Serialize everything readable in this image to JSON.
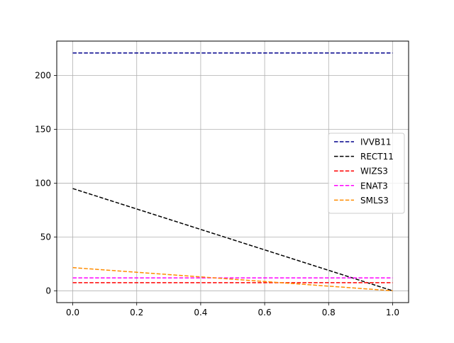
{
  "chart_data": {
    "type": "line",
    "title": "",
    "xlabel": "",
    "ylabel": "",
    "xlim": [
      -0.05,
      1.05
    ],
    "ylim": [
      -11,
      232
    ],
    "xticks": [
      0.0,
      0.2,
      0.4,
      0.6,
      0.8,
      1.0
    ],
    "xtick_labels": [
      "0.0",
      "0.2",
      "0.4",
      "0.6",
      "0.8",
      "1.0"
    ],
    "yticks": [
      0,
      50,
      100,
      150,
      200
    ],
    "ytick_labels": [
      "0",
      "50",
      "100",
      "150",
      "200"
    ],
    "grid": true,
    "legend_position": "center-right",
    "line_style": "dashed",
    "series": [
      {
        "name": "IVVB11",
        "color": "#00008b",
        "x": [
          0.0,
          1.0
        ],
        "y": [
          221,
          221
        ]
      },
      {
        "name": "RECT11",
        "color": "#000000",
        "x": [
          0.0,
          1.0
        ],
        "y": [
          95,
          0
        ]
      },
      {
        "name": "WIZS3",
        "color": "#ff0000",
        "x": [
          0.0,
          1.0
        ],
        "y": [
          7.5,
          7.5
        ]
      },
      {
        "name": "ENAT3",
        "color": "#ff00ff",
        "x": [
          0.0,
          1.0
        ],
        "y": [
          12,
          12
        ]
      },
      {
        "name": "SMLS3",
        "color": "#ff8c00",
        "x": [
          0.0,
          1.0
        ],
        "y": [
          21.5,
          0
        ]
      }
    ]
  }
}
